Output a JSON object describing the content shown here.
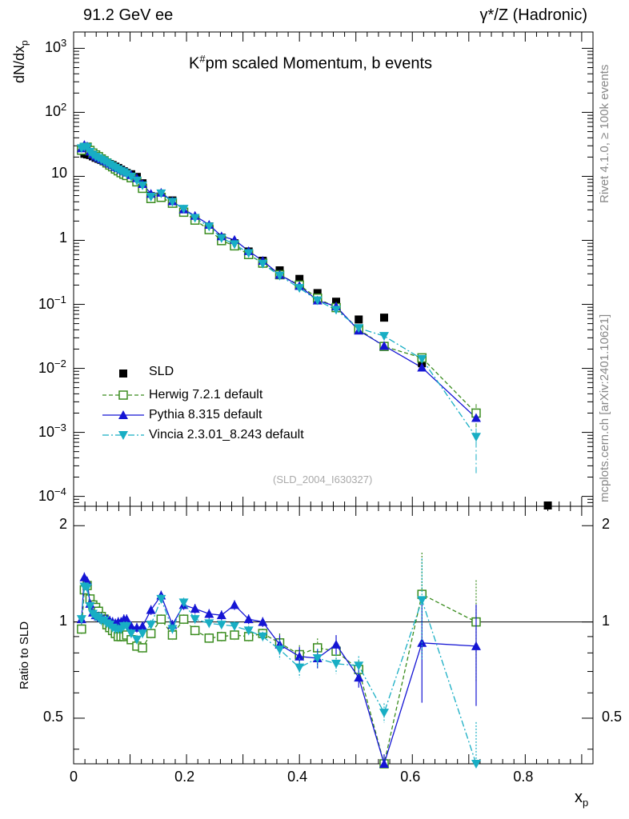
{
  "header": {
    "left": "91.2 GeV ee",
    "right": "γ*/Z (Hadronic)"
  },
  "side": {
    "rivet": "Rivet 4.1.0, ≥ 100k events",
    "mcplots": "mcplots.cern.ch [arXiv:2401.10621]"
  },
  "plot_title": "K#pm scaled Momentum, b events",
  "plot_title_parts": {
    "base": "K",
    "sup": "#",
    "rest": "pm scaled Momentum, b events"
  },
  "watermark": "(SLD_2004_I630327)",
  "axes": {
    "ylabel_top": {
      "base": "dN/dx",
      "sub": "p"
    },
    "ylabel_bottom": "Ratio to SLD",
    "xlabel": {
      "base": "x",
      "sub": "p"
    },
    "x_ticks": [
      "0",
      "0.2",
      "0.4",
      "0.6",
      "0.8"
    ],
    "x_tick_values": [
      0,
      0.2,
      0.4,
      0.6,
      0.8
    ],
    "y_ticks_top": [
      {
        "value": 1000,
        "base": "10",
        "exp": "3"
      },
      {
        "value": 100,
        "base": "10",
        "exp": "2"
      },
      {
        "value": 10,
        "base": "10",
        "exp": ""
      },
      {
        "value": 1,
        "base": "1",
        "exp": ""
      },
      {
        "value": 0.1,
        "base": "10",
        "exp": "−1"
      },
      {
        "value": 0.01,
        "base": "10",
        "exp": "−2"
      },
      {
        "value": 0.001,
        "base": "10",
        "exp": "−3"
      },
      {
        "value": 0.0001,
        "base": "10",
        "exp": "−4"
      }
    ],
    "y_ticks_bottom": [
      "2",
      "1",
      "0.5"
    ]
  },
  "colors": {
    "sld": "#000000",
    "herwig": "#3a8c1e",
    "pythia": "#1515d4",
    "vincia": "#18aec4",
    "side_text": "#888888"
  },
  "legend": [
    {
      "label": "SLD",
      "key": "sld"
    },
    {
      "label": "Herwig 7.2.1 default",
      "key": "herwig"
    },
    {
      "label": "Pythia 8.315 default",
      "key": "pythia"
    },
    {
      "label": "Vincia 2.3.01_8.243 default",
      "key": "vincia"
    }
  ],
  "chart_data": {
    "type": "scatter",
    "title": "K#pm scaled Momentum, b events",
    "xlabel": "x_p",
    "ylabel": "dN/dx_p",
    "ratio_ylabel": "Ratio to SLD",
    "xlim": [
      0,
      0.92
    ],
    "ylim": [
      7e-05,
      1800
    ],
    "yscale": "log",
    "ratio_ylim": [
      0.36,
      2.3
    ],
    "ratio_yscale": "log",
    "x": [
      0.014,
      0.019,
      0.024,
      0.029,
      0.034,
      0.039,
      0.044,
      0.049,
      0.054,
      0.059,
      0.064,
      0.069,
      0.074,
      0.079,
      0.084,
      0.089,
      0.094,
      0.102,
      0.112,
      0.122,
      0.137,
      0.155,
      0.175,
      0.195,
      0.215,
      0.24,
      0.262,
      0.285,
      0.31,
      0.335,
      0.365,
      0.4,
      0.432,
      0.465,
      0.505,
      0.55,
      0.617,
      0.713,
      0.84
    ],
    "series": [
      {
        "name": "SLD",
        "values": [
          27,
          22.5,
          22,
          21.5,
          20.5,
          19.5,
          18.8,
          18,
          17.2,
          16.5,
          15.6,
          15,
          14.2,
          13.5,
          12.7,
          12,
          11.3,
          10.8,
          9.8,
          7.8,
          4.9,
          4.6,
          4.2,
          2.7,
          2.2,
          1.65,
          1.1,
          0.9,
          0.67,
          0.48,
          0.34,
          0.25,
          0.15,
          0.11,
          0.058,
          0.062,
          0.012,
          0.002,
          7e-05
        ]
      },
      {
        "name": "Herwig 7.2.1 default",
        "values": [
          25.6,
          28.4,
          28.6,
          25.4,
          23.1,
          21.6,
          20.3,
          18.7,
          17.5,
          16.2,
          15.0,
          14.1,
          13.0,
          12.2,
          11.4,
          10.8,
          10.3,
          9.5,
          8.2,
          6.5,
          4.5,
          4.7,
          3.8,
          2.75,
          2.07,
          1.47,
          0.99,
          0.82,
          0.6,
          0.44,
          0.29,
          0.2,
          0.125,
          0.089,
          0.041,
          0.022,
          0.0146,
          0.002
        ],
        "ratio": [
          0.95,
          1.26,
          1.3,
          1.18,
          1.13,
          1.11,
          1.08,
          1.04,
          1.02,
          0.98,
          0.96,
          0.94,
          0.92,
          0.9,
          0.9,
          0.9,
          0.91,
          0.88,
          0.84,
          0.83,
          0.92,
          1.02,
          0.91,
          1.02,
          0.94,
          0.89,
          0.9,
          0.91,
          0.9,
          0.92,
          0.86,
          0.79,
          0.83,
          0.81,
          0.71,
          0.36,
          1.22,
          1.0
        ]
      },
      {
        "name": "Pythia 8.315 default",
        "values": [
          27.5,
          31,
          29.5,
          24.5,
          22,
          20.5,
          19.5,
          18.5,
          17.6,
          16.8,
          15.8,
          15.0,
          14.0,
          13.5,
          12.7,
          12.2,
          11.5,
          10.5,
          9.4,
          7.6,
          5.35,
          5.57,
          4.1,
          3.05,
          2.42,
          1.75,
          1.16,
          1.02,
          0.68,
          0.48,
          0.29,
          0.195,
          0.115,
          0.093,
          0.039,
          0.0225,
          0.0103,
          0.00168
        ],
        "ratio": [
          1.02,
          1.38,
          1.34,
          1.14,
          1.07,
          1.05,
          1.04,
          1.03,
          1.02,
          1.02,
          1.01,
          1.0,
          0.99,
          1.0,
          1.0,
          1.02,
          1.02,
          0.97,
          0.96,
          0.97,
          1.09,
          1.21,
          0.98,
          1.13,
          1.1,
          1.06,
          1.05,
          1.13,
          1.02,
          1.0,
          0.85,
          0.78,
          0.77,
          0.85,
          0.67,
          0.36,
          0.86,
          0.84
        ]
      },
      {
        "name": "Vincia 2.3.01_8.243 default",
        "values": [
          27.5,
          29,
          28.2,
          24,
          21.8,
          20.2,
          19.3,
          18.2,
          17.3,
          16.3,
          15.3,
          14.4,
          13.5,
          12.8,
          12.1,
          11.6,
          10.9,
          9.9,
          8.6,
          7.2,
          4.8,
          5.4,
          4.0,
          3.1,
          2.24,
          1.64,
          1.08,
          0.87,
          0.63,
          0.43,
          0.28,
          0.18,
          0.115,
          0.082,
          0.0425,
          0.032,
          0.014,
          0.00085
        ],
        "ratio": [
          1.02,
          1.29,
          1.28,
          1.12,
          1.06,
          1.04,
          1.03,
          1.01,
          1.01,
          0.99,
          0.98,
          0.96,
          0.95,
          0.95,
          0.95,
          0.97,
          0.97,
          0.92,
          0.88,
          0.92,
          0.98,
          1.18,
          0.95,
          1.15,
          1.02,
          0.99,
          0.98,
          0.97,
          0.94,
          0.9,
          0.82,
          0.72,
          0.77,
          0.74,
          0.73,
          0.52,
          1.17,
          0.36
        ]
      }
    ]
  }
}
